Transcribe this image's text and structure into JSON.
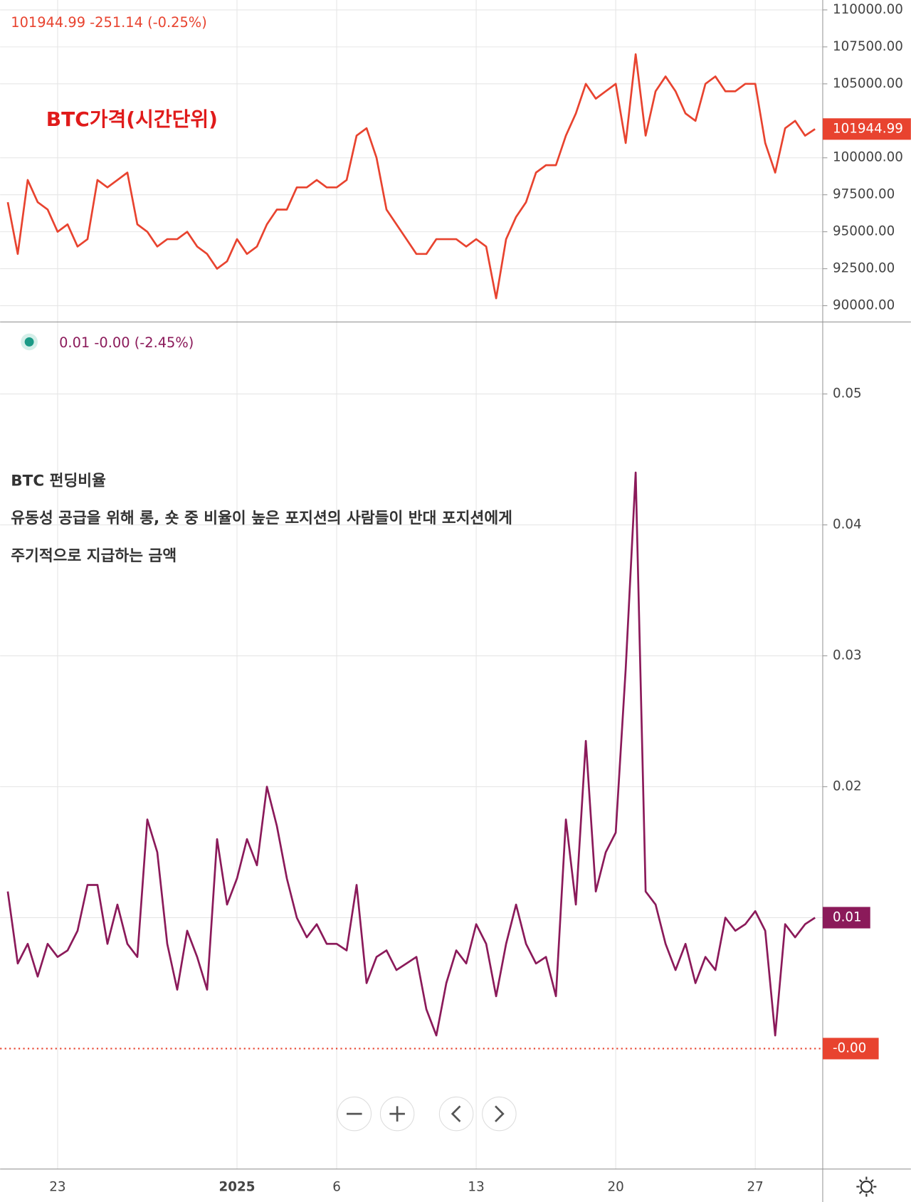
{
  "chart_data": [
    {
      "type": "line",
      "title": "BTC가격(시간단위)",
      "header": "101944.99  -251.14 (-0.25%)",
      "series": [
        {
          "color": "#e8432f",
          "values": [
            97000,
            93500,
            98500,
            97000,
            96500,
            95000,
            95500,
            94000,
            94500,
            98500,
            98000,
            98500,
            99000,
            95500,
            95000,
            94000,
            94500,
            94500,
            95000,
            94000,
            93500,
            92500,
            93000,
            94500,
            93500,
            94000,
            95500,
            96500,
            96500,
            98000,
            98000,
            98500,
            98000,
            98000,
            98500,
            101500,
            102000,
            100000,
            96500,
            95500,
            94500,
            93500,
            93500,
            94500,
            94500,
            94500,
            94000,
            94500,
            94000,
            90500,
            94500,
            96000,
            97000,
            99000,
            99500,
            99500,
            101500,
            103000,
            105000,
            104000,
            104500,
            105000,
            101000,
            107000,
            101500,
            104500,
            105500,
            104500,
            103000,
            102500,
            105000,
            105500,
            104500,
            104500,
            105000,
            105000,
            101000,
            99000,
            102000,
            102500,
            101500,
            101944.99
          ]
        }
      ],
      "ylim": [
        88900,
        110670
      ],
      "yticks": [
        {
          "value": 90000,
          "label": "90000.00"
        },
        {
          "value": 92500,
          "label": "92500.00"
        },
        {
          "value": 95000,
          "label": "95000.00"
        },
        {
          "value": 97500,
          "label": "97500.00"
        },
        {
          "value": 100000,
          "label": "100000.00"
        },
        {
          "value": 105000,
          "label": "105000.00"
        },
        {
          "value": 107500,
          "label": "107500.00"
        },
        {
          "value": 110000,
          "label": "110000.00"
        }
      ],
      "grid": true
    },
    {
      "type": "line",
      "header": "0.01  -0.00 (-2.45%)",
      "annotations": [
        "BTC 펀딩비율",
        "유동성 공급을 위해 롱, 숏 중 비율이 높은 포지션의 사람들이 반대 포지션에게",
        "주기적으로 지급하는 금액"
      ],
      "categories": [
        null,
        null,
        null,
        null,
        null,
        "23",
        null,
        null,
        null,
        null,
        null,
        null,
        null,
        null,
        null,
        null,
        null,
        null,
        null,
        null,
        null,
        null,
        null,
        "2025",
        null,
        null,
        null,
        null,
        null,
        null,
        null,
        null,
        null,
        "6",
        null,
        null,
        null,
        null,
        null,
        null,
        null,
        null,
        null,
        null,
        null,
        null,
        null,
        "13",
        null,
        null,
        null,
        null,
        null,
        null,
        null,
        null,
        null,
        null,
        null,
        null,
        null,
        "20",
        null,
        null,
        null,
        null,
        null,
        null,
        null,
        null,
        null,
        null,
        null,
        null,
        null,
        "27",
        null,
        null,
        null,
        null,
        null,
        null
      ],
      "series": [
        {
          "color": "#8b1a5a",
          "values": [
            0.012,
            0.0065,
            0.008,
            0.0055,
            0.008,
            0.007,
            0.0075,
            0.009,
            0.0125,
            0.0125,
            0.008,
            0.011,
            0.008,
            0.007,
            0.0175,
            0.015,
            0.008,
            0.0045,
            0.009,
            0.007,
            0.0045,
            0.016,
            0.011,
            0.013,
            0.016,
            0.014,
            0.02,
            0.017,
            0.013,
            0.01,
            0.0085,
            0.0095,
            0.008,
            0.008,
            0.0075,
            0.0125,
            0.005,
            0.007,
            0.0075,
            0.006,
            0.0065,
            0.007,
            0.003,
            0.001,
            0.005,
            0.0075,
            0.0065,
            0.0095,
            0.008,
            0.004,
            0.008,
            0.011,
            0.008,
            0.0065,
            0.007,
            0.004,
            0.0175,
            0.011,
            0.0235,
            0.012,
            0.015,
            0.0165,
            0.029,
            0.044,
            0.012,
            0.011,
            0.008,
            0.006,
            0.008,
            0.005,
            0.007,
            0.006,
            0.01,
            0.009,
            0.0095,
            0.0105,
            0.009,
            0.001,
            0.0095,
            0.0085,
            0.0095,
            0.01
          ]
        }
      ],
      "ylim": [
        -0.0092,
        0.0555
      ],
      "yticks": [
        0.01,
        0.02,
        0.03,
        0.04,
        0.05
      ],
      "reference_line": {
        "value": 0,
        "label": "-0.00"
      },
      "grid": true
    }
  ]
}
